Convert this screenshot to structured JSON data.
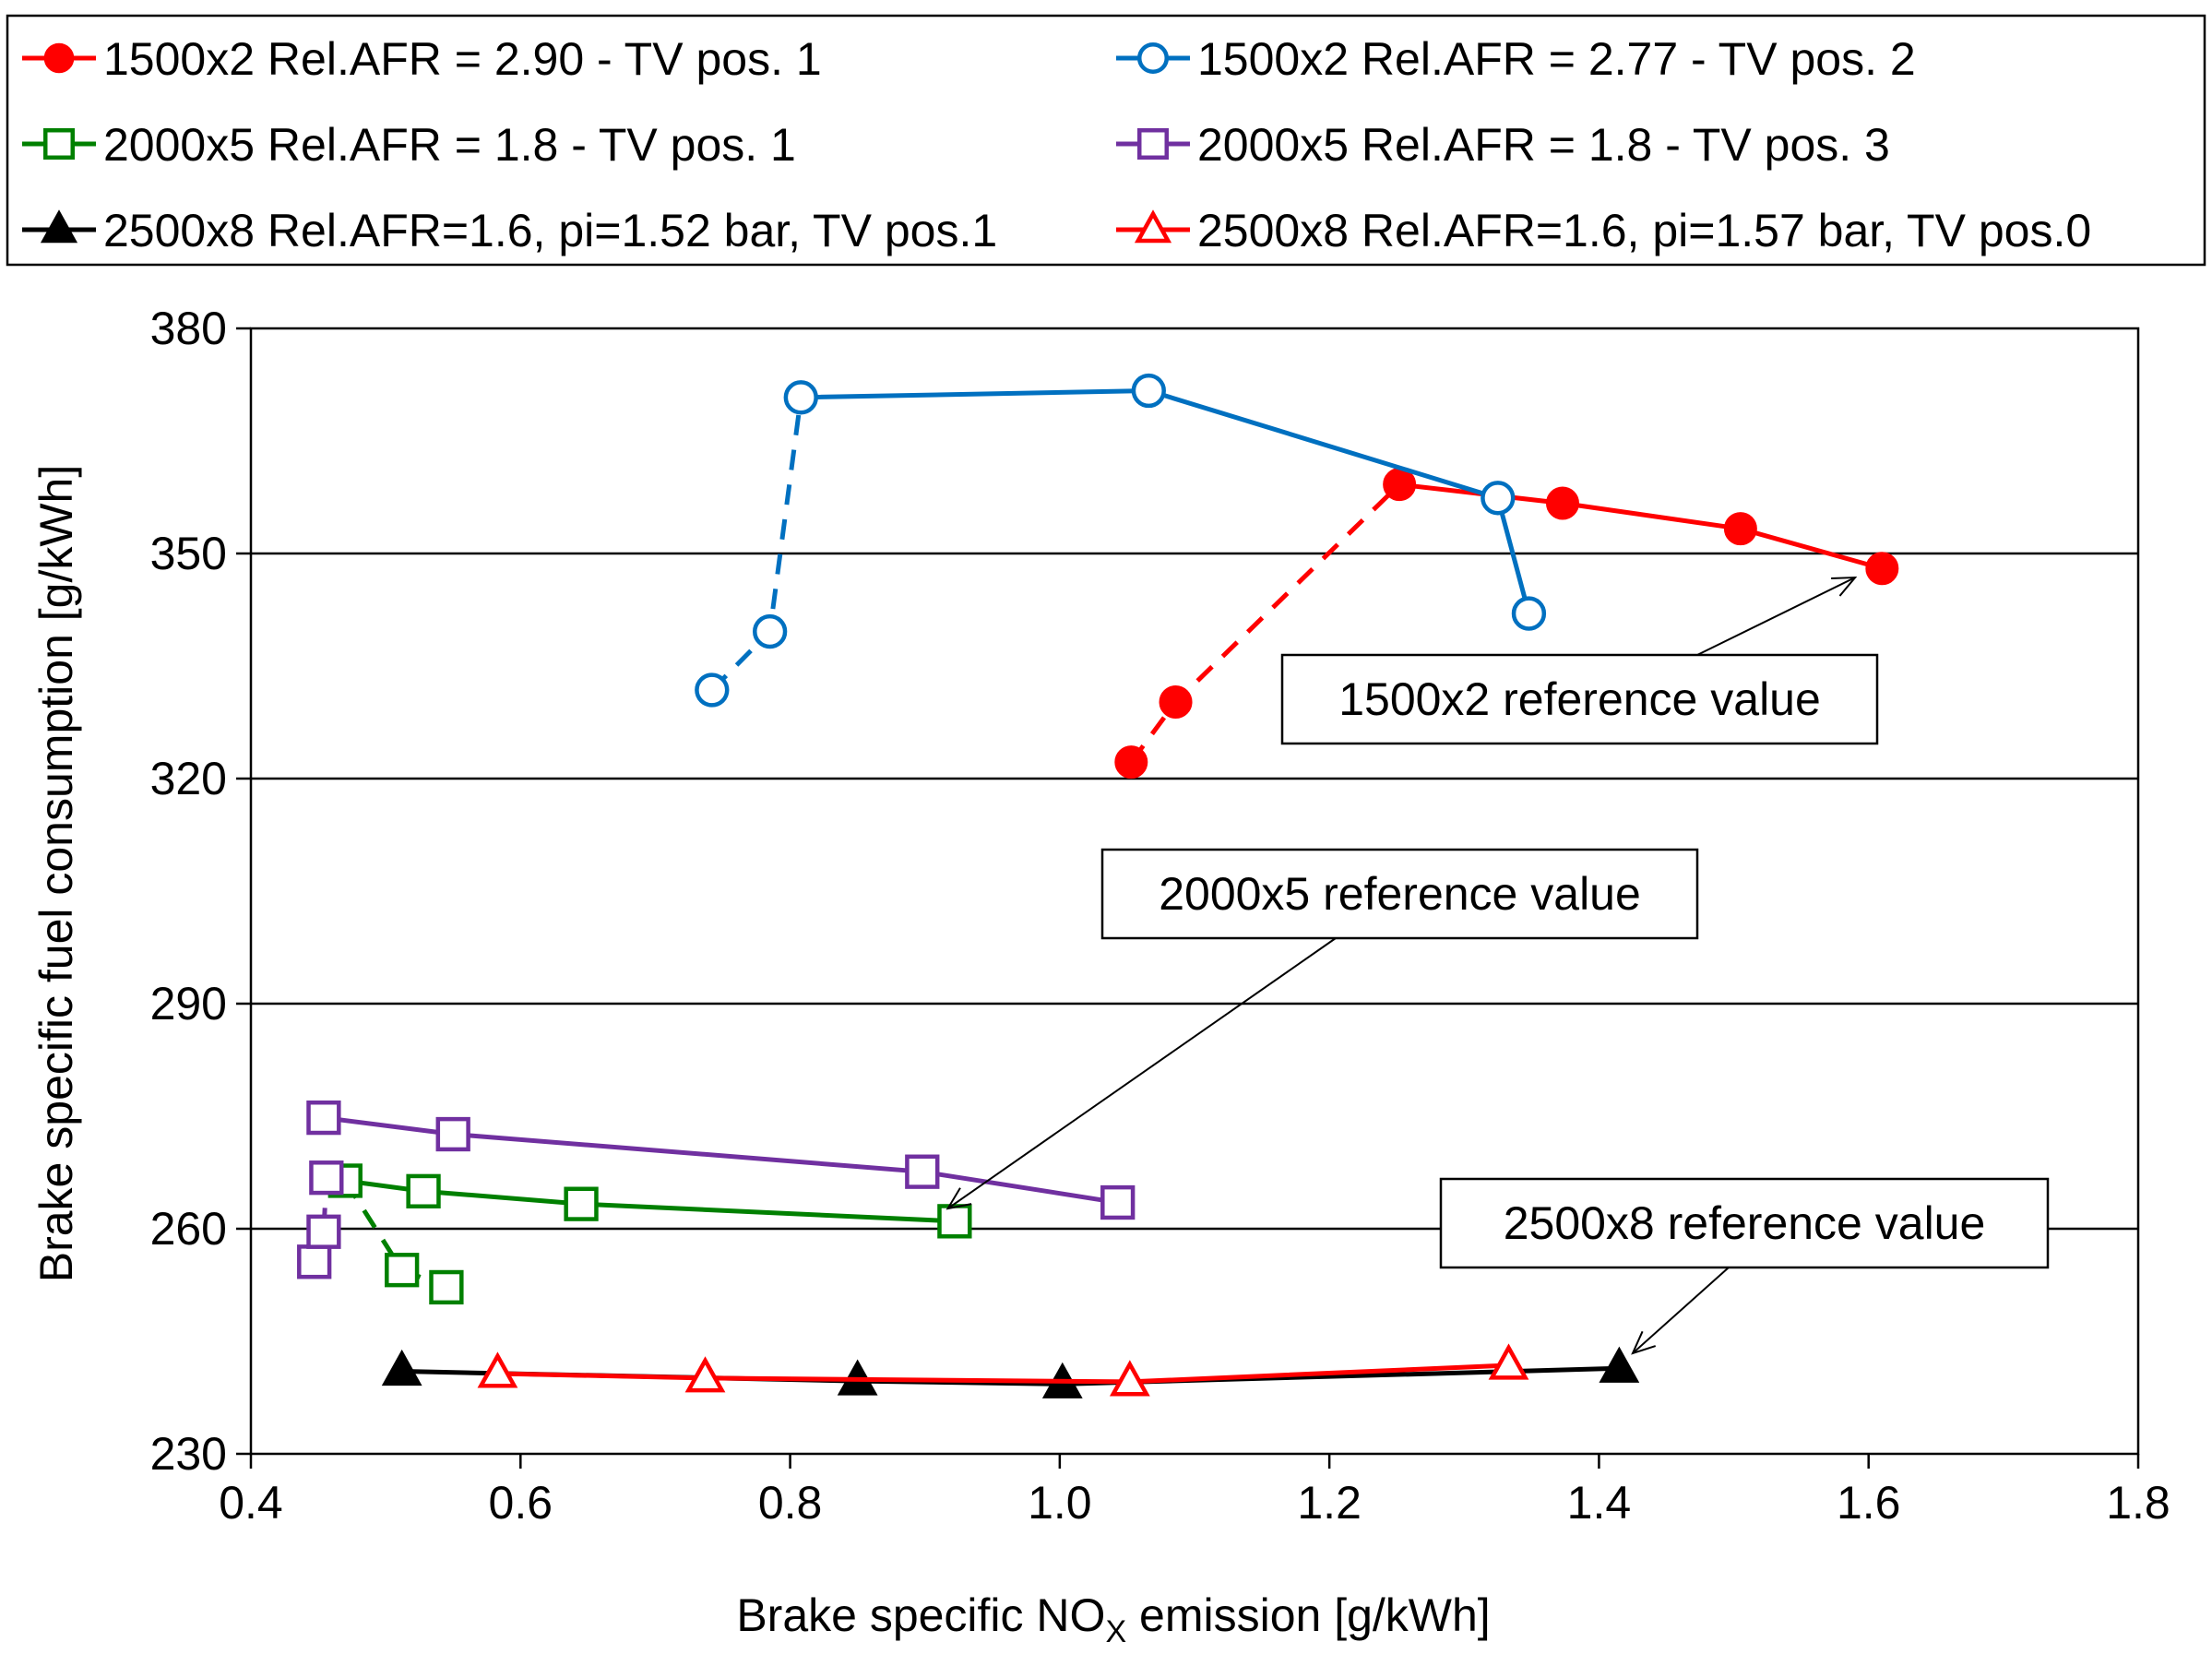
{
  "chart_data": {
    "type": "scatter",
    "xlabel_main": "Brake specific NO",
    "xlabel_sub": "X",
    "xlabel_tail": " emission [g/kWh]",
    "ylabel": "Brake specific fuel consumption [g/kWh]",
    "xlim": [
      0.4,
      1.8
    ],
    "ylim": [
      230,
      380
    ],
    "x_ticks": [
      "0.4",
      "0.6",
      "0.8",
      "1.0",
      "1.2",
      "1.4",
      "1.6",
      "1.8"
    ],
    "y_ticks": [
      "230",
      "260",
      "290",
      "320",
      "350",
      "380"
    ],
    "grid": "horizontal",
    "legend_position": "top",
    "series": [
      {
        "name": "1500x2 Rel.AFR = 2.90 - TV pos. 1",
        "color": "#ff0000",
        "marker": "circle-filled",
        "dashed": [
          [
            1.053,
            322.2
          ],
          [
            1.086,
            330.2
          ],
          [
            1.252,
            359.2
          ]
        ],
        "solid": [
          [
            1.252,
            359.2
          ],
          [
            1.373,
            356.7
          ],
          [
            1.505,
            353.3
          ],
          [
            1.61,
            348.0
          ]
        ]
      },
      {
        "name": "1500x2 Rel.AFR = 2.77 - TV pos. 2",
        "color": "#0070c0",
        "marker": "circle-open",
        "dashed": [
          [
            0.742,
            331.8
          ],
          [
            0.785,
            339.6
          ],
          [
            0.808,
            370.8
          ]
        ],
        "solid": [
          [
            0.808,
            370.8
          ],
          [
            1.066,
            371.7
          ],
          [
            1.325,
            357.4
          ],
          [
            1.348,
            342.0
          ]
        ]
      },
      {
        "name": "2000x5 Rel.AFR = 1.8 - TV pos. 1",
        "color": "#008000",
        "marker": "square-open",
        "dashed": [
          [
            0.47,
            266.4
          ],
          [
            0.512,
            254.5
          ],
          [
            0.545,
            252.2
          ]
        ],
        "solid": [
          [
            0.47,
            266.4
          ],
          [
            0.528,
            265.0
          ],
          [
            0.645,
            263.3
          ],
          [
            0.922,
            261.0
          ]
        ]
      },
      {
        "name": "2000x5 Rel.AFR = 1.8 - TV pos. 3",
        "color": "#7030a0",
        "marker": "square-open",
        "dashed": [
          [
            0.447,
            255.6
          ],
          [
            0.454,
            259.6
          ],
          [
            0.456,
            266.8
          ]
        ],
        "solid": [
          [
            0.454,
            274.8
          ],
          [
            0.55,
            272.6
          ],
          [
            0.898,
            267.6
          ],
          [
            1.043,
            263.5
          ]
        ]
      },
      {
        "name": "2500x8 Rel.AFR=1.6, pi=1.52 bar, TV pos.1",
        "color": "#000000",
        "marker": "triangle-filled",
        "dashed": [],
        "solid": [
          [
            0.512,
            241.0
          ],
          [
            0.85,
            239.7
          ],
          [
            1.002,
            239.3
          ],
          [
            1.415,
            241.4
          ]
        ]
      },
      {
        "name": "2500x8 Rel.AFR=1.6, pi=1.57 bar, TV pos.0",
        "color": "#ff0000",
        "marker": "triangle-open",
        "dashed": [],
        "solid": [
          [
            0.583,
            240.7
          ],
          [
            0.737,
            240.1
          ],
          [
            1.052,
            239.6
          ],
          [
            1.333,
            241.8
          ]
        ]
      }
    ],
    "annotations": [
      {
        "text": "1500x2 reference value",
        "target": [
          1.59,
          346.8
        ]
      },
      {
        "text": "2000x5 reference value",
        "target": [
          0.917,
          262.7
        ]
      },
      {
        "text": "2500x8 reference value",
        "target": [
          1.425,
          243.4
        ]
      }
    ]
  }
}
